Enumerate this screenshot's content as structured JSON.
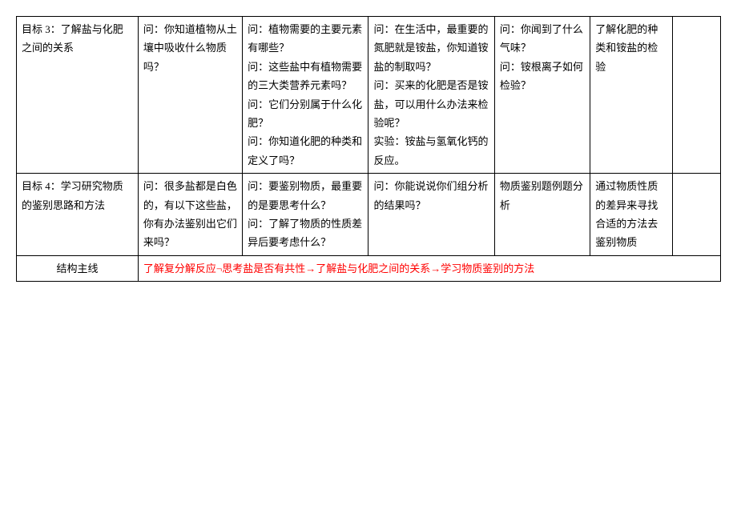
{
  "row1": {
    "c1": "目标 3：了解盐与化肥之间的关系",
    "c2": "问：你知道植物从土壤中吸收什么物质吗？",
    "c3": "问：植物需要的主要元素有哪些？\n问：这些盐中有植物需要的三大类营养元素吗？\n问：它们分别属于什么化肥？\n问：你知道化肥的种类和定义了吗？",
    "c4": "问：在生活中，最重要的氮肥就是铵盐，你知道铵盐的制取吗？\n问：买来的化肥是否是铵盐，可以用什么办法来检验呢？\n实验：铵盐与氢氧化钙的反应。",
    "c5": "问：你闻到了什么气味？\n问：铵根离子如何检验？",
    "c6": "了解化肥的种类和铵盐的检验",
    "c7": ""
  },
  "row2": {
    "c1": "目标 4：学习研究物质的鉴别思路和方法",
    "c2": "问：很多盐都是白色的，有以下这些盐，你有办法鉴别出它们来吗？",
    "c3": "问：要鉴别物质，最重要的是要思考什么？\n问：了解了物质的性质差异后要考虑什么？",
    "c4": "问：你能说说你们组分析的结果吗？",
    "c5": "物质鉴别题例题分析",
    "c6": "通过物质性质的差异来寻找合适的方法去鉴别物质",
    "c7": ""
  },
  "footer": {
    "label": "结构主线",
    "content": "了解复分解反应¬思考盐是否有共性→了解盐与化肥之间的关系→学习物质鉴别的方法"
  }
}
